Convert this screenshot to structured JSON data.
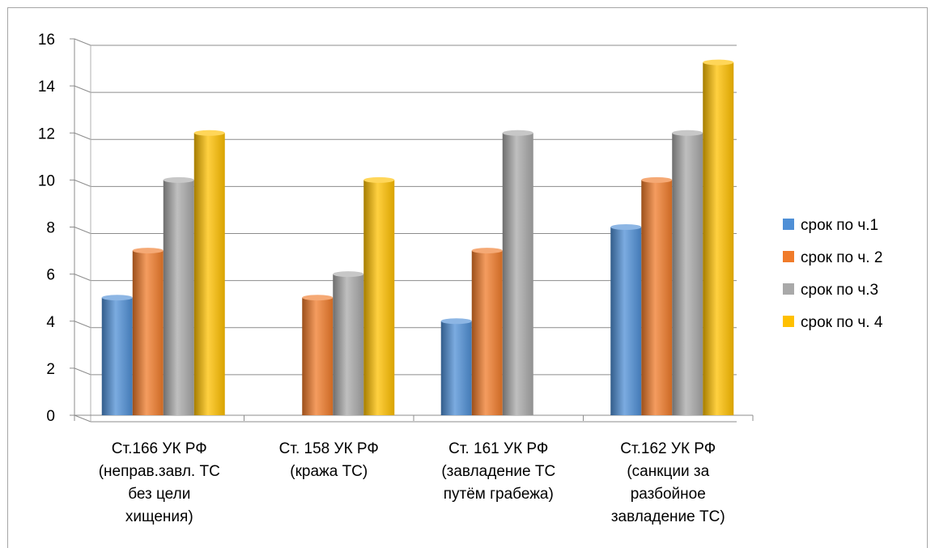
{
  "chart_data": {
    "type": "bar",
    "title": "",
    "xlabel": "",
    "ylabel": "",
    "ylim": [
      0,
      16
    ],
    "yticks": [
      "0",
      "2",
      "4",
      "6",
      "8",
      "10",
      "12",
      "14",
      "16"
    ],
    "categories": [
      [
        "Ст.166 УК РФ",
        "(неправ.завл. ТС",
        "без цели",
        "хищения)"
      ],
      [
        "Ст. 158 УК РФ",
        "(кража ТС)"
      ],
      [
        "Ст. 161 УК РФ",
        "(завладение ТС",
        "путём грабежа)"
      ],
      [
        "Ст.162 УК РФ",
        "(санкции за",
        "разбойное",
        "завладение ТС)"
      ]
    ],
    "series": [
      {
        "name": "срок по ч.1",
        "color": "#4f8fd6",
        "values": [
          5,
          0,
          4,
          8
        ]
      },
      {
        "name": "срок по ч. 2",
        "color": "#f07b2a",
        "values": [
          7,
          5,
          7,
          10
        ]
      },
      {
        "name": "срок по ч.3",
        "color": "#a9a9a9",
        "values": [
          10,
          6,
          12,
          12
        ]
      },
      {
        "name": "срок по ч. 4",
        "color": "#ffc000",
        "values": [
          12,
          10,
          0,
          15
        ]
      }
    ],
    "grid": true,
    "legend": "right"
  }
}
